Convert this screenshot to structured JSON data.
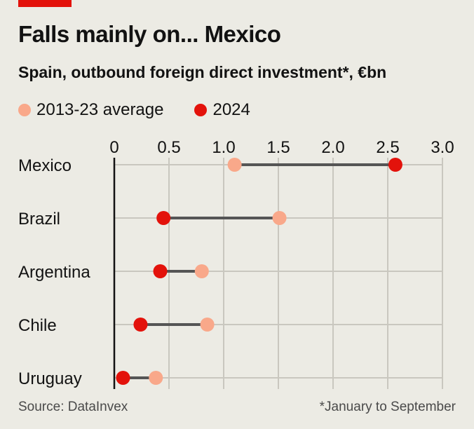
{
  "header": {
    "title": "Falls mainly on... Mexico",
    "subtitle": "Spain, outbound foreign direct investment*, €bn"
  },
  "colors": {
    "accent": "#e3120b",
    "series_2013_23": "#f9a88a",
    "series_2024": "#e3120b",
    "connector": "#555555",
    "grid": "#c9c7bf"
  },
  "chart_data": {
    "type": "dot-range",
    "title": "Falls mainly on... Mexico",
    "subtitle": "Spain, outbound foreign direct investment*, €bn",
    "xlabel": "",
    "ylabel": "",
    "xlim": [
      0,
      3.0
    ],
    "xticks": [
      "0",
      "0.5",
      "1.0",
      "1.5",
      "2.0",
      "2.5",
      "3.0"
    ],
    "grid": true,
    "legend_position": "top-left",
    "categories": [
      "Mexico",
      "Brazil",
      "Argentina",
      "Chile",
      "Uruguay"
    ],
    "series": [
      {
        "name": "2013-23 average",
        "values": [
          1.1,
          1.51,
          0.8,
          0.85,
          0.38
        ]
      },
      {
        "name": "2024",
        "values": [
          2.57,
          0.45,
          0.42,
          0.24,
          0.08
        ]
      }
    ]
  },
  "footer": {
    "source": "Source: DataInvex",
    "note": "*January to September"
  }
}
